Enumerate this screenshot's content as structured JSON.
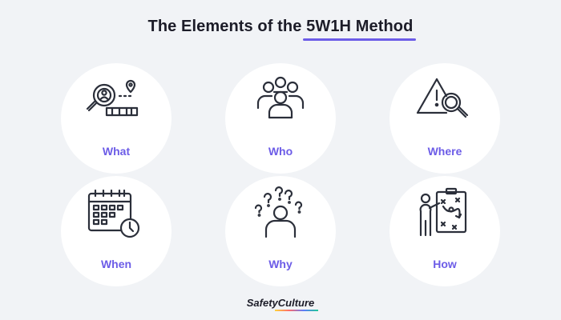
{
  "title": {
    "prefix": "The Elements of the ",
    "highlight": "5W1H Method"
  },
  "elements": [
    {
      "label": "What",
      "icon": "magnifier-person-location-icon"
    },
    {
      "label": "Who",
      "icon": "group-people-icon"
    },
    {
      "label": "Where",
      "icon": "warning-magnifier-icon"
    },
    {
      "label": "When",
      "icon": "calendar-clock-icon"
    },
    {
      "label": "Why",
      "icon": "person-question-marks-icon"
    },
    {
      "label": "How",
      "icon": "presenter-strategy-board-icon"
    }
  ],
  "brand": {
    "name": "SafetyCulture"
  },
  "colors": {
    "accent": "#6c5ce7",
    "background": "#f1f3f6",
    "card": "#ffffff",
    "icon": "#2b2f3a"
  }
}
